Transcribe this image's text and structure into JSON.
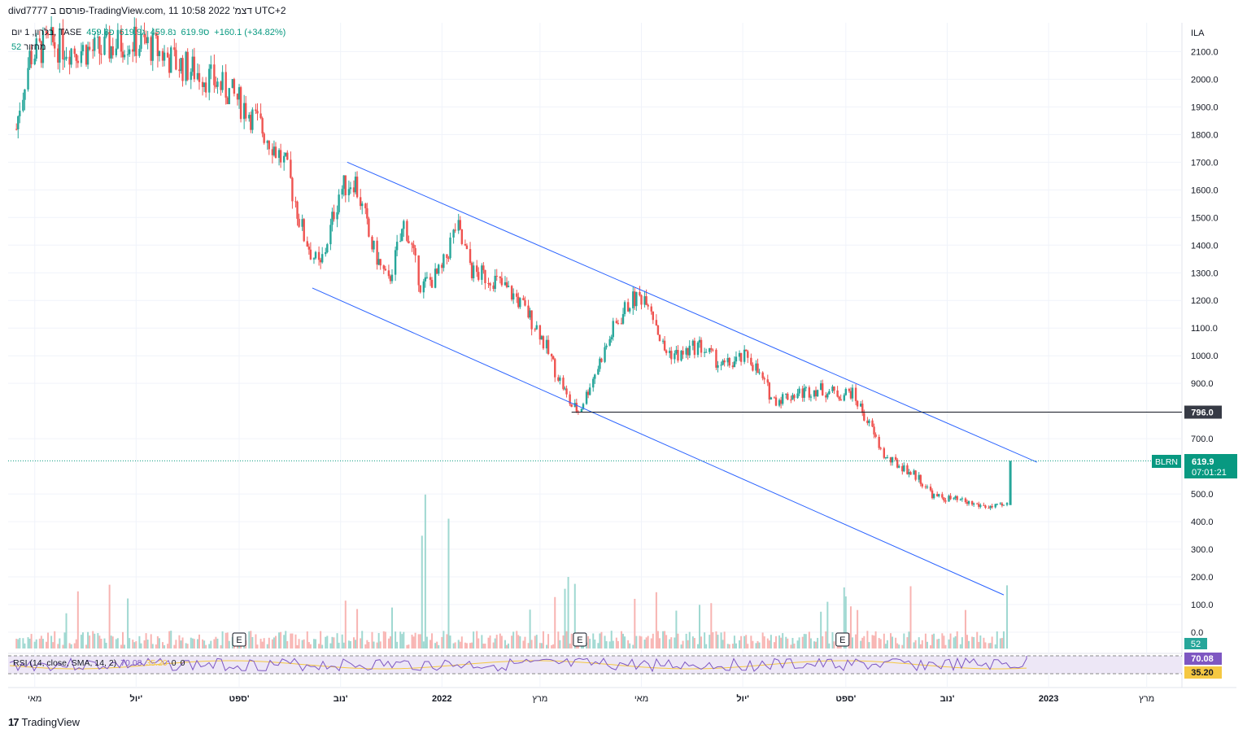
{
  "header": {
    "publisher_line": "divd7777 פורסם ב-TradingView.com, 11 דצמ' 2022 10:58 UTC+2",
    "symbol_line": "בלרון, 1 יום, TASE",
    "open": "פ459.8",
    "high": "ג619.9",
    "low": "נ459.8",
    "close": "ס619.9",
    "change": "+160.1 (+34.82%)",
    "volume_label": "מחזור",
    "volume_value": "52"
  },
  "currency": "ILA",
  "price_axis": [
    "2100.0",
    "2000.0",
    "1900.0",
    "1800.0",
    "1700.0",
    "1600.0",
    "1500.0",
    "1400.0",
    "1300.0",
    "1200.0",
    "1100.0",
    "1000.0",
    "900.0",
    "700.0",
    "500.0",
    "400.0",
    "300.0",
    "200.0",
    "100.0",
    "0.0"
  ],
  "time_axis": [
    "מאי",
    "יול'",
    "ספט'",
    "נוב'",
    "2022",
    "מרץ",
    "מאי",
    "יול'",
    "ספט'",
    "נוב'",
    "2023",
    "מרץ"
  ],
  "labels": {
    "horizontal_level": "796.0",
    "last_price": "619.9",
    "countdown": "07:01:21",
    "ticker_tag": "BLRN",
    "volume_tag": "52",
    "rsi_value": "70.08",
    "rsi_ma_value": "35.20",
    "earnings_marker": "E"
  },
  "rsi": {
    "label": "RSI (14, close, SMA, 14, 2)",
    "value": "70.08",
    "ma": "35.20",
    "extra1": "0",
    "extra2": "0"
  },
  "footer": {
    "brand": "TradingView",
    "logo": "17"
  },
  "colors": {
    "up": "#26a69a",
    "down": "#ef5350",
    "channel": "#2962ff",
    "level": "#131722",
    "rsi": "#7e57c2",
    "rsi_ma": "#f5c842",
    "last": "#089981"
  },
  "chart_data": {
    "type": "candlestick",
    "symbol": "BLRN",
    "exchange": "TASE",
    "interval": "1D",
    "ylim": [
      0,
      2150
    ],
    "y_unit": "ILA",
    "close_path": [
      {
        "x": "2021-04-20",
        "y": 1820
      },
      {
        "x": "2021-04-28",
        "y": 2080
      },
      {
        "x": "2021-05-10",
        "y": 2130
      },
      {
        "x": "2021-05-25",
        "y": 2110
      },
      {
        "x": "2021-06-10",
        "y": 2100
      },
      {
        "x": "2021-06-25",
        "y": 2140
      },
      {
        "x": "2021-07-10",
        "y": 2120
      },
      {
        "x": "2021-07-25",
        "y": 2060
      },
      {
        "x": "2021-08-10",
        "y": 2020
      },
      {
        "x": "2021-08-25",
        "y": 1960
      },
      {
        "x": "2021-09-05",
        "y": 1900
      },
      {
        "x": "2021-09-20",
        "y": 1780
      },
      {
        "x": "2021-09-30",
        "y": 1680
      },
      {
        "x": "2021-10-10",
        "y": 1440
      },
      {
        "x": "2021-10-20",
        "y": 1310
      },
      {
        "x": "2021-11-01",
        "y": 1600
      },
      {
        "x": "2021-11-10",
        "y": 1640
      },
      {
        "x": "2021-11-20",
        "y": 1400
      },
      {
        "x": "2021-11-30",
        "y": 1260
      },
      {
        "x": "2021-12-10",
        "y": 1480
      },
      {
        "x": "2021-12-20",
        "y": 1250
      },
      {
        "x": "2022-01-01",
        "y": 1300
      },
      {
        "x": "2022-01-10",
        "y": 1470
      },
      {
        "x": "2022-01-20",
        "y": 1300
      },
      {
        "x": "2022-02-01",
        "y": 1280
      },
      {
        "x": "2022-02-15",
        "y": 1210
      },
      {
        "x": "2022-02-28",
        "y": 1100
      },
      {
        "x": "2022-03-10",
        "y": 960
      },
      {
        "x": "2022-03-20",
        "y": 820
      },
      {
        "x": "2022-03-25",
        "y": 800
      },
      {
        "x": "2022-04-05",
        "y": 960
      },
      {
        "x": "2022-04-15",
        "y": 1100
      },
      {
        "x": "2022-04-25",
        "y": 1200
      },
      {
        "x": "2022-05-05",
        "y": 1220
      },
      {
        "x": "2022-05-15",
        "y": 1020
      },
      {
        "x": "2022-05-25",
        "y": 1000
      },
      {
        "x": "2022-06-05",
        "y": 1040
      },
      {
        "x": "2022-06-20",
        "y": 960
      },
      {
        "x": "2022-07-05",
        "y": 1000
      },
      {
        "x": "2022-07-20",
        "y": 840
      },
      {
        "x": "2022-08-01",
        "y": 860
      },
      {
        "x": "2022-08-15",
        "y": 880
      },
      {
        "x": "2022-08-30",
        "y": 860
      },
      {
        "x": "2022-09-05",
        "y": 870
      },
      {
        "x": "2022-09-15",
        "y": 760
      },
      {
        "x": "2022-09-25",
        "y": 630
      },
      {
        "x": "2022-10-05",
        "y": 600
      },
      {
        "x": "2022-10-15",
        "y": 560
      },
      {
        "x": "2022-10-25",
        "y": 490
      },
      {
        "x": "2022-11-05",
        "y": 480
      },
      {
        "x": "2022-11-20",
        "y": 460
      },
      {
        "x": "2022-12-01",
        "y": 450
      },
      {
        "x": "2022-12-08",
        "y": 459.8
      },
      {
        "x": "2022-12-09",
        "y": 619.9
      }
    ],
    "last_bar": {
      "open": 459.8,
      "high": 619.9,
      "low": 459.8,
      "close": 619.9,
      "change": 160.1,
      "change_pct": 34.82,
      "volume": 52
    },
    "horizontal_level": 796.0,
    "channel_upper": [
      {
        "x": "2021-11-05",
        "y": 1700
      },
      {
        "x": "2022-12-25",
        "y": 615
      }
    ],
    "channel_lower": [
      {
        "x": "2021-10-15",
        "y": 1245
      },
      {
        "x": "2022-12-05",
        "y": 135
      }
    ],
    "rsi": {
      "period": 14,
      "value": 70.08,
      "ma": 35.2,
      "upper_band": 70,
      "lower_band": 30
    },
    "earnings_dates": [
      "2021-09-01",
      "2022-03-25",
      "2022-08-30"
    ]
  }
}
